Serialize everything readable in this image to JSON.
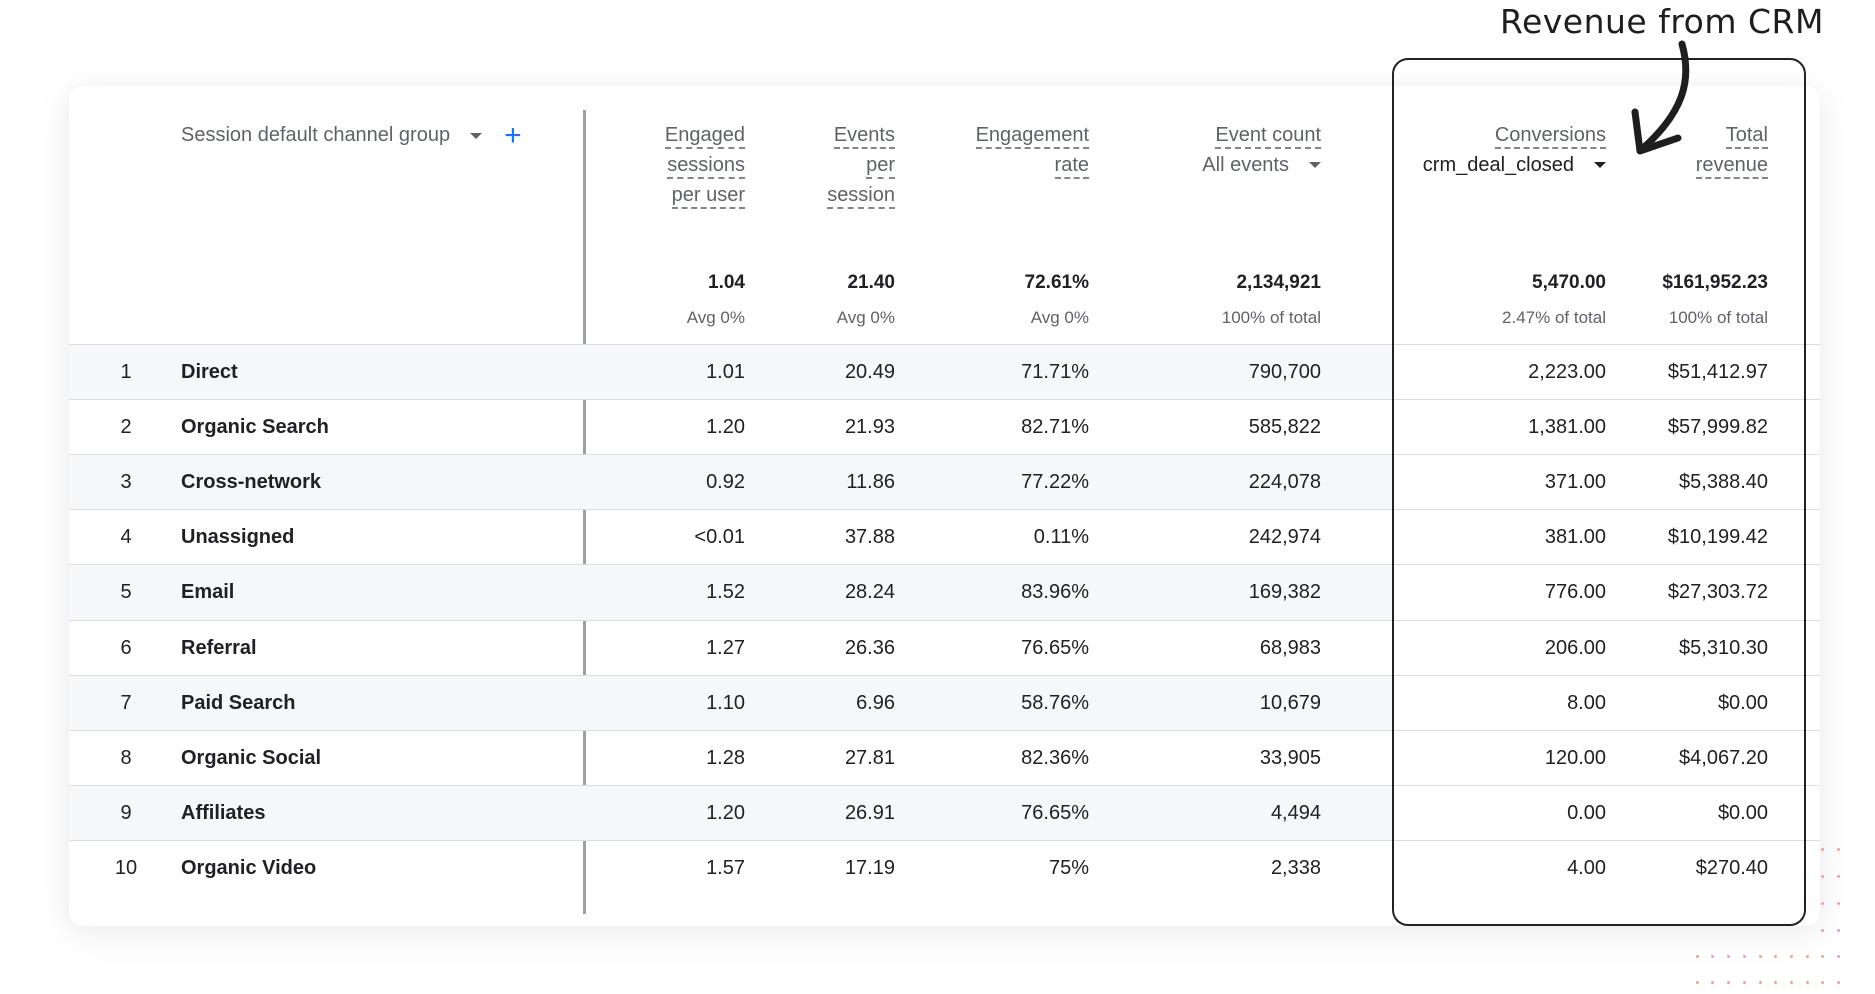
{
  "annotation": {
    "text": "Revenue from CRM"
  },
  "table": {
    "dimension_header": "Session default channel group",
    "columns": [
      {
        "lines": [
          "Engaged",
          "sessions",
          "per user"
        ]
      },
      {
        "lines": [
          "Events",
          "per",
          "session"
        ]
      },
      {
        "lines": [
          "Engagement",
          "rate"
        ]
      },
      {
        "lines": [
          "Event count"
        ],
        "selector": "All events"
      },
      {
        "lines": [
          "Conversions"
        ],
        "selector": "crm_deal_closed"
      },
      {
        "lines": [
          "Total",
          "revenue"
        ]
      }
    ],
    "totals": [
      "1.04",
      "21.40",
      "72.61%",
      "2,134,921",
      "5,470.00",
      "$161,952.23"
    ],
    "totals_sub": [
      "Avg 0%",
      "Avg 0%",
      "Avg 0%",
      "100% of total",
      "2.47% of total",
      "100% of total"
    ],
    "rows": [
      {
        "index": "1",
        "name": "Direct",
        "values": [
          "1.01",
          "20.49",
          "71.71%",
          "790,700",
          "2,223.00",
          "$51,412.97"
        ]
      },
      {
        "index": "2",
        "name": "Organic Search",
        "values": [
          "1.20",
          "21.93",
          "82.71%",
          "585,822",
          "1,381.00",
          "$57,999.82"
        ]
      },
      {
        "index": "3",
        "name": "Cross-network",
        "values": [
          "0.92",
          "11.86",
          "77.22%",
          "224,078",
          "371.00",
          "$5,388.40"
        ]
      },
      {
        "index": "4",
        "name": "Unassigned",
        "values": [
          "<0.01",
          "37.88",
          "0.11%",
          "242,974",
          "381.00",
          "$10,199.42"
        ]
      },
      {
        "index": "5",
        "name": "Email",
        "values": [
          "1.52",
          "28.24",
          "83.96%",
          "169,382",
          "776.00",
          "$27,303.72"
        ]
      },
      {
        "index": "6",
        "name": "Referral",
        "values": [
          "1.27",
          "26.36",
          "76.65%",
          "68,983",
          "206.00",
          "$5,310.30"
        ]
      },
      {
        "index": "7",
        "name": "Paid Search",
        "values": [
          "1.10",
          "6.96",
          "58.76%",
          "10,679",
          "8.00",
          "$0.00"
        ]
      },
      {
        "index": "8",
        "name": "Organic Social",
        "values": [
          "1.28",
          "27.81",
          "82.36%",
          "33,905",
          "120.00",
          "$4,067.20"
        ]
      },
      {
        "index": "9",
        "name": "Affiliates",
        "values": [
          "1.20",
          "26.91",
          "76.65%",
          "4,494",
          "0.00",
          "$0.00"
        ]
      },
      {
        "index": "10",
        "name": "Organic Video",
        "values": [
          "1.57",
          "17.19",
          "75%",
          "2,338",
          "4.00",
          "$270.40"
        ]
      }
    ]
  },
  "colors": {
    "accent": "#1a73e8",
    "highlight_border": "#222222",
    "dots": "#f1a197"
  }
}
